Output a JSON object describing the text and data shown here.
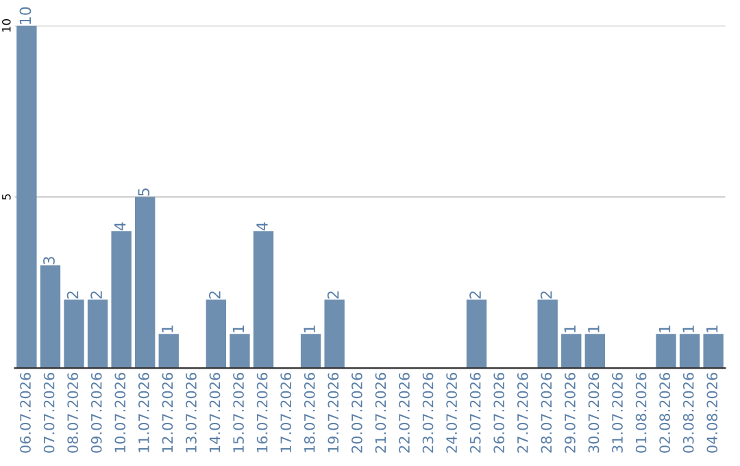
{
  "chart_data": {
    "type": "bar",
    "categories": [
      "06.07.2026",
      "07.07.2026",
      "08.07.2026",
      "09.07.2026",
      "10.07.2026",
      "11.07.2026",
      "12.07.2026",
      "13.07.2026",
      "14.07.2026",
      "15.07.2026",
      "16.07.2026",
      "17.07.2026",
      "18.07.2026",
      "19.07.2026",
      "20.07.2026",
      "21.07.2026",
      "22.07.2026",
      "23.07.2026",
      "24.07.2026",
      "25.07.2026",
      "26.07.2026",
      "27.07.2026",
      "28.07.2026",
      "29.07.2026",
      "30.07.2026",
      "31.07.2026",
      "01.08.2026",
      "02.08.2026",
      "03.08.2026",
      "04.08.2026"
    ],
    "values": [
      10,
      3,
      2,
      2,
      4,
      5,
      1,
      0,
      2,
      1,
      4,
      0,
      1,
      2,
      0,
      0,
      0,
      0,
      0,
      2,
      0,
      0,
      2,
      1,
      1,
      0,
      0,
      1,
      1,
      1
    ],
    "value_labels": [
      "10",
      "3",
      "2",
      "2",
      "4",
      "5",
      "1",
      null,
      "2",
      "1",
      "4",
      null,
      "1",
      "2",
      null,
      null,
      null,
      null,
      null,
      "2",
      null,
      null,
      "2",
      "1",
      "1",
      null,
      null,
      "1",
      "1",
      "1"
    ],
    "color": "#6e8fb0",
    "ylim": [
      0,
      10
    ],
    "yticks": [
      5,
      10
    ],
    "grid": "y"
  }
}
